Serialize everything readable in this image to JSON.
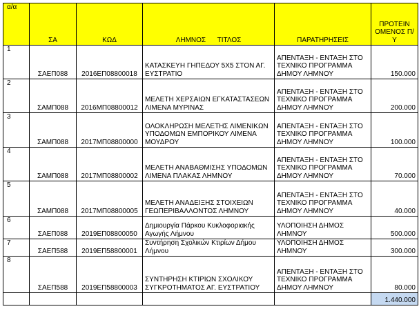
{
  "header": {
    "aa": "α/α",
    "sa": "ΣΑ",
    "kod": "ΚΩΔ",
    "title": "ΛΗΜΝΟΣ      ΤΙΤΛΟΣ",
    "notes": "ΠΑΡΑΤΗΡΗΣΕΙΣ",
    "budget": "ΠΡΟΤΕΙΝ ΟΜΕΝΟΣ Π/Υ"
  },
  "header_color": "#ffff00",
  "rows": [
    {
      "aa": "1",
      "sa": "ΣΑΕΠ088",
      "kod": "2016ΕΠ08800018",
      "title": "ΚΑΤΑΣΚΕΥΗ ΓΗΠΕΔΟΥ 5Χ5 ΣΤΟΝ ΑΓ. ΕΥΣΤΡΑΤΙΟ",
      "notes": "ΑΠΕΝΤΑΞΗ - ΕΝΤΑΞΗ ΣΤΟ ΤΕΧΝΙΚΟ ΠΡΟΓΡΑΜΜΑ ΔΗΜΟΥ ΛΗΜΝΟΥ",
      "budget": "150.000"
    },
    {
      "aa": "2",
      "sa": "ΣΑΜΠ088",
      "kod": "2016ΜΠ08800012",
      "title": "ΜΕΛΕΤΗ ΧΕΡΣΑΙΩΝ ΕΓΚΑΤΑΣΤΑΣΕΩΝ ΛΙΜΕΝΑ ΜΥΡΙΝΑΣ",
      "notes": "ΑΠΕΝΤΑΞΗ - ΕΝΤΑΞΗ ΣΤΟ ΤΕΧΝΙΚΟ ΠΡΟΓΡΑΜΜΑ ΔΗΜΟΥ ΛΗΜΝΟΥ",
      "budget": "200.000"
    },
    {
      "aa": "3",
      "sa": "ΣΑΜΠ088",
      "kod": "2017ΜΠ08800000",
      "title": "ΟΛΟΚΛΗΡΩΣΗ ΜΕΛΕΤΗΣ ΛΙΜΕΝΙΚΩΝ ΥΠΟΔΟΜΩΝ ΕΜΠΟΡΙΚΟΥ ΛΙΜΕΝΑ ΜΟΥΔΡΟΥ",
      "notes": "ΑΠΕΝΤΑΞΗ - ΕΝΤΑΞΗ ΣΤΟ ΤΕΧΝΙΚΟ ΠΡΟΓΡΑΜΜΑ ΔΗΜΟΥ ΛΗΜΝΟΥ",
      "budget": "100.000"
    },
    {
      "aa": "4",
      "sa": "ΣΑΜΠ088",
      "kod": "2017ΜΠ08800002",
      "title": "ΜΕΛΕΤΗ ΑΝΑΒΑΘΜΙΣΗΣ ΥΠΟΔΟΜΩΝ ΛΙΜΕΝΑ ΠΛΑΚΑΣ ΛΗΜΝΟΥ",
      "notes": "ΑΠΕΝΤΑΞΗ - ΕΝΤΑΞΗ ΣΤΟ ΤΕΧΝΙΚΟ ΠΡΟΓΡΑΜΜΑ ΔΗΜΟΥ ΛΗΜΝΟΥ",
      "budget": "70.000"
    },
    {
      "aa": "5",
      "sa": "ΣΑΜΠ088",
      "kod": "2017ΜΠ08800005",
      "title": "ΜΕΛΕΤΗ ΑΝΑΔΕΙΞΗΣ ΣΤΟΙΧΕΙΩΝ ΓΕΩΠΕΡΙΒΑΛΛΟΝΤΟΣ ΛΗΜΝΟΥ",
      "notes": "ΑΠΕΝΤΑΞΗ - ΕΝΤΑΞΗ ΣΤΟ ΤΕΧΝΙΚΟ ΠΡΟΓΡΑΜΜΑ ΔΗΜΟΥ ΛΗΜΝΟΥ",
      "budget": "40.000"
    },
    {
      "aa": "6",
      "sa": "ΣΑΕΠ088",
      "kod": "2019ΕΠ08800050",
      "title": "Δημιουργία Πάρκου Κυκλοφοριακής Αγωγής Λήμνου",
      "notes": "ΥΛΟΠΟΙΗΣΗ ΔΗΜΟΣ ΛΗΜΝΟΥ",
      "budget": "500.000"
    },
    {
      "aa": "7",
      "sa": "ΣΑΕΠ588",
      "kod": "2019ΕΠ58800001",
      "title": "Συντήρηση Σχολικών Κτιρίων Δήμου Λήμνου",
      "notes": "ΥΛΟΠΟΙΗΣΗ ΔΗΜΟΣ ΛΗΜΝΟΥ",
      "budget": "300.000"
    },
    {
      "aa": "8",
      "sa": "ΣΑΕΠ588",
      "kod": "2019ΕΠ58800003",
      "title": "ΣΥΝΤΗΡΗΣΗ  ΚΤΙΡΙΩΝ ΣΧΟΛΙΚΟΥ ΣΥΓΚΡΟΤΗΜΑΤΟΣ ΑΓ. ΕΥΣΤΡΑΤΙΟΥ",
      "notes": "ΑΠΕΝΤΑΞΗ - ΕΝΤΑΞΗ ΣΤΟ ΤΕΧΝΙΚΟ ΠΡΟΓΡΑΜΜΑ ΔΗΜΟΥ ΛΗΜΝΟΥ",
      "budget": "80.000"
    }
  ],
  "total": "1.440.000",
  "total_color": "#c5d9f1"
}
